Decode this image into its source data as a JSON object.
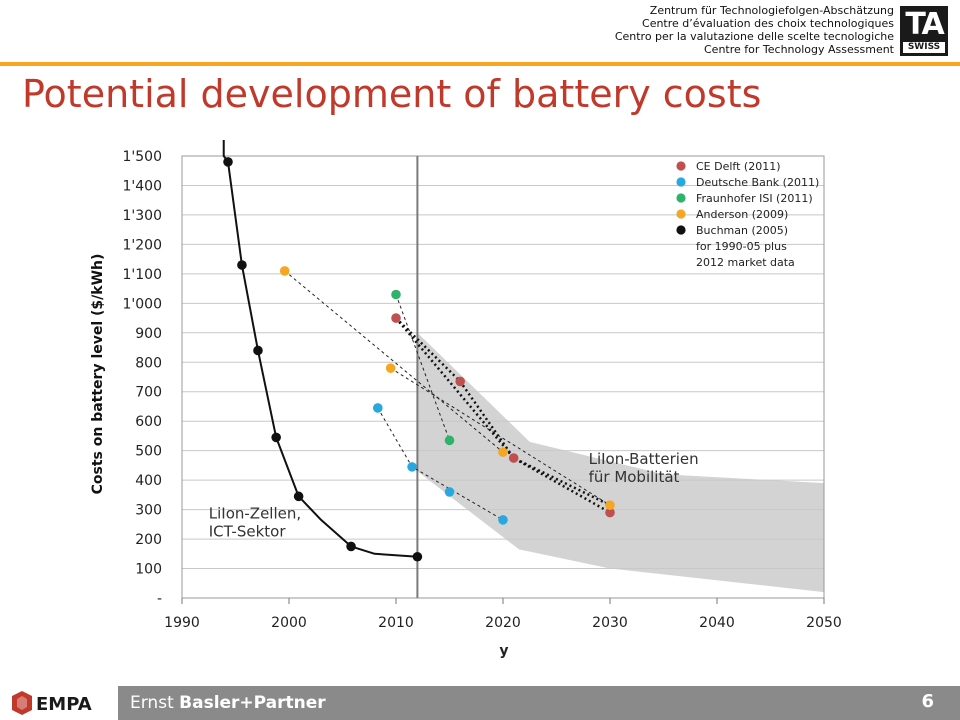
{
  "header": {
    "institute_lines": [
      "Zentrum für Technologiefolgen-Abschätzung",
      "Centre d’évaluation des choix technologiques",
      "Centro per la valutazione delle scelte tecnologiche",
      "Centre for Technology Assessment"
    ],
    "logo_letters": "TA",
    "logo_sub": "SWISS"
  },
  "slide": {
    "title": "Potential development of battery costs",
    "page_number": "6"
  },
  "footer": {
    "empa_label": "EMPA",
    "ebp_prefix": "Ernst ",
    "ebp_bold": "Basler+Partner"
  },
  "colors": {
    "title": "#c0392b",
    "accent_bar": "#f5a623",
    "ce_delft": "#c0504d",
    "deutsche_bank": "#29a8e0",
    "fraunhofer": "#2fb36b",
    "anderson": "#f5a623",
    "buchman": "#111111",
    "band": "#d3d3d3"
  },
  "chart_data": {
    "type": "scatter",
    "title": "",
    "xlabel": "y",
    "ylabel": "Costs on battery level ($/kWh)",
    "xlim": [
      1990,
      2050
    ],
    "ylim": [
      0,
      1500
    ],
    "x_ticks": [
      "1990",
      "2000",
      "2010",
      "2020",
      "2030",
      "2040",
      "2050"
    ],
    "y_ticks": [
      "-",
      "100",
      "200",
      "300",
      "400",
      "500",
      "600",
      "700",
      "800",
      "900",
      "1'000",
      "1'100",
      "1'200",
      "1'300",
      "1'400",
      "1'500"
    ],
    "grid": "horizontal",
    "reference_line_x": 2012,
    "legend_position": "top-right",
    "series": [
      {
        "name": "CE Delft (2011)",
        "color": "#c0504d",
        "points": [
          [
            2010,
            950
          ],
          [
            2016,
            735
          ],
          [
            2021,
            475
          ],
          [
            2030,
            290
          ]
        ]
      },
      {
        "name": "Deutsche Bank (2011)",
        "color": "#29a8e0",
        "points": [
          [
            2008.3,
            645
          ],
          [
            2011.5,
            445
          ],
          [
            2015,
            360
          ],
          [
            2020,
            265
          ]
        ]
      },
      {
        "name": "Fraunhofer ISI (2011)",
        "color": "#2fb36b",
        "points": [
          [
            2010,
            1030
          ],
          [
            2015,
            535
          ]
        ]
      },
      {
        "name": "Anderson (2009)",
        "color": "#f5a623",
        "points": [
          [
            1999.6,
            1110
          ],
          [
            2009.5,
            780
          ],
          [
            2020,
            495
          ],
          [
            2030,
            315
          ]
        ]
      },
      {
        "name": "Buchman (2005)\nfor 1990-05 plus\n2012 market data",
        "color": "#111111",
        "points": [
          [
            1994.3,
            1480
          ],
          [
            1995.6,
            1130
          ],
          [
            1997.1,
            840
          ],
          [
            1998.8,
            545
          ],
          [
            2000.9,
            345
          ],
          [
            2005.8,
            175
          ],
          [
            2012,
            140
          ]
        ]
      }
    ],
    "dotted_trends": [
      [
        [
          2010,
          950
        ],
        [
          2016,
          735
        ],
        [
          2021,
          475
        ],
        [
          2030,
          290
        ]
      ],
      [
        [
          2010,
          950
        ],
        [
          2021,
          475
        ],
        [
          2030,
          315
        ]
      ]
    ],
    "dashed_links": [
      [
        [
          1999.6,
          1110
        ],
        [
          2020,
          495
        ]
      ],
      [
        [
          2009.5,
          780
        ],
        [
          2030,
          315
        ]
      ],
      [
        [
          2008.3,
          645
        ],
        [
          2011.5,
          445
        ],
        [
          2020,
          265
        ]
      ],
      [
        [
          2010,
          1030
        ],
        [
          2015,
          535
        ]
      ]
    ],
    "buchman_curve": [
      [
        1993.9,
        1500
      ],
      [
        1994.3,
        1480
      ],
      [
        1995.6,
        1130
      ],
      [
        1997.1,
        840
      ],
      [
        1998.8,
        545
      ],
      [
        2000.9,
        345
      ],
      [
        2003,
        265
      ],
      [
        2005.8,
        175
      ],
      [
        2008,
        150
      ],
      [
        2012,
        140
      ]
    ],
    "band_polygon": [
      [
        2012,
        900
      ],
      [
        2022.5,
        530
      ],
      [
        2035,
        420
      ],
      [
        2050,
        390
      ],
      [
        2050,
        20
      ],
      [
        2030,
        100
      ],
      [
        2021.5,
        165
      ],
      [
        2012,
        430
      ]
    ],
    "annotations": [
      {
        "text": "LiIon-Batterien\nfür Mobilität",
        "x": 2028,
        "y": 455
      },
      {
        "text": "LiIon-Zellen,\nICT-Sektor",
        "x": 1992.5,
        "y": 270
      }
    ]
  }
}
